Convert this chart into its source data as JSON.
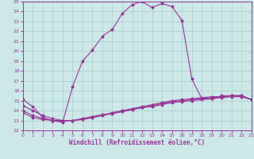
{
  "xlabel": "Windchill (Refroidissement éolien,°C)",
  "background_color": "#cce8e8",
  "grid_color": "#aacccc",
  "line_color": "#993399",
  "xlim": [
    0,
    23
  ],
  "ylim": [
    12,
    25
  ],
  "xticks": [
    0,
    1,
    2,
    3,
    4,
    5,
    6,
    7,
    8,
    9,
    10,
    11,
    12,
    13,
    14,
    15,
    16,
    17,
    18,
    19,
    20,
    21,
    22,
    23
  ],
  "yticks": [
    12,
    13,
    14,
    15,
    16,
    17,
    18,
    19,
    20,
    21,
    22,
    23,
    24,
    25
  ],
  "line1_x": [
    0,
    1,
    2,
    3,
    4,
    5,
    6,
    7,
    8,
    9,
    10,
    11,
    12,
    13,
    14,
    15,
    16,
    17,
    18,
    19,
    20,
    21,
    22,
    23
  ],
  "line1_y": [
    15.1,
    14.4,
    13.3,
    13.0,
    12.8,
    16.4,
    19.0,
    20.1,
    21.5,
    22.2,
    23.8,
    24.7,
    25.0,
    24.4,
    24.8,
    24.5,
    23.1,
    17.2,
    15.2,
    15.2,
    15.5,
    15.5,
    15.5,
    15.1
  ],
  "line2_x": [
    0,
    1,
    2,
    3,
    4,
    5,
    6,
    7,
    8,
    9,
    10,
    11,
    12,
    13,
    14,
    15,
    16,
    17,
    18,
    19,
    20,
    21,
    22,
    23
  ],
  "line2_y": [
    13.8,
    13.3,
    13.1,
    13.0,
    12.9,
    13.0,
    13.2,
    13.4,
    13.6,
    13.7,
    13.9,
    14.1,
    14.3,
    14.4,
    14.6,
    14.8,
    14.9,
    15.0,
    15.1,
    15.2,
    15.3,
    15.4,
    15.4,
    15.1
  ],
  "line3_x": [
    0,
    1,
    2,
    3,
    4,
    5,
    6,
    7,
    8,
    9,
    10,
    11,
    12,
    13,
    14,
    15,
    16,
    17,
    18,
    19,
    20,
    21,
    22,
    23
  ],
  "line3_y": [
    14.0,
    13.5,
    13.2,
    13.0,
    13.0,
    13.0,
    13.1,
    13.3,
    13.5,
    13.7,
    13.9,
    14.1,
    14.3,
    14.5,
    14.7,
    14.9,
    15.0,
    15.1,
    15.2,
    15.3,
    15.4,
    15.5,
    15.5,
    15.1
  ],
  "line4_x": [
    0,
    1,
    2,
    3,
    4,
    5,
    6,
    7,
    8,
    9,
    10,
    11,
    12,
    13,
    14,
    15,
    16,
    17,
    18,
    19,
    20,
    21,
    22,
    23
  ],
  "line4_y": [
    14.5,
    14.0,
    13.5,
    13.2,
    13.0,
    13.0,
    13.1,
    13.3,
    13.5,
    13.8,
    14.0,
    14.2,
    14.4,
    14.6,
    14.8,
    15.0,
    15.1,
    15.2,
    15.3,
    15.4,
    15.4,
    15.5,
    15.5,
    15.1
  ]
}
